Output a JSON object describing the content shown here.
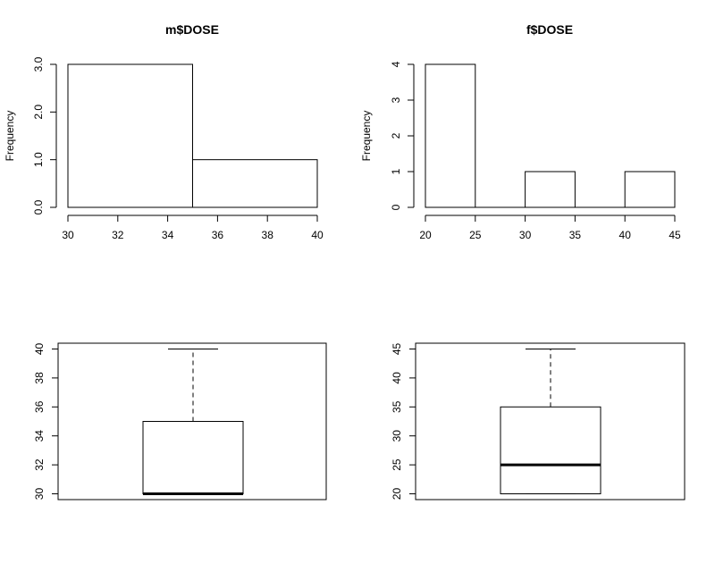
{
  "chart_data": [
    {
      "type": "histogram",
      "title": "m$DOSE",
      "xlabel": "",
      "ylabel": "Frequency",
      "bins": [
        [
          30,
          35
        ],
        [
          35,
          40
        ]
      ],
      "values": [
        3,
        1
      ],
      "xlim": [
        30,
        40
      ],
      "ylim": [
        0,
        3
      ],
      "xticks": [
        "30",
        "32",
        "34",
        "36",
        "38",
        "40"
      ],
      "yticks": [
        "0.0",
        "1.0",
        "2.0",
        "3.0"
      ],
      "grid": false
    },
    {
      "type": "histogram",
      "title": "f$DOSE",
      "xlabel": "",
      "ylabel": "Frequency",
      "bins": [
        [
          20,
          25
        ],
        [
          25,
          30
        ],
        [
          30,
          35
        ],
        [
          35,
          40
        ],
        [
          40,
          45
        ]
      ],
      "values": [
        4,
        0,
        1,
        0,
        1
      ],
      "xlim": [
        20,
        45
      ],
      "ylim": [
        0,
        4
      ],
      "xticks": [
        "20",
        "25",
        "30",
        "35",
        "40",
        "45"
      ],
      "yticks": [
        "0",
        "1",
        "2",
        "3",
        "4"
      ],
      "grid": false
    },
    {
      "type": "boxplot",
      "title": "",
      "stats": {
        "min": 30,
        "q1": 30,
        "median": 30,
        "q3": 35,
        "max": 40
      },
      "ylim": [
        29.6,
        40.4
      ],
      "yticks": [
        "30",
        "32",
        "34",
        "36",
        "38",
        "40"
      ],
      "grid": false
    },
    {
      "type": "boxplot",
      "title": "",
      "stats": {
        "min": 20,
        "q1": 20,
        "median": 25,
        "q3": 35,
        "max": 45
      },
      "ylim": [
        19,
        46
      ],
      "yticks": [
        "20",
        "25",
        "30",
        "35",
        "40",
        "45"
      ],
      "grid": false
    }
  ]
}
